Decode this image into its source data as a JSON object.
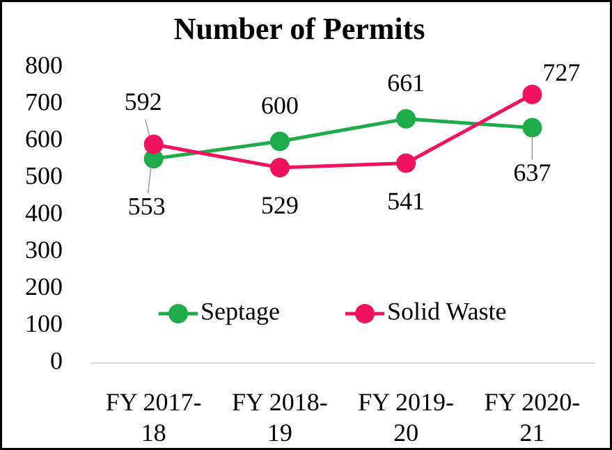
{
  "chart_data": {
    "type": "line",
    "title": "Number of Permits",
    "categories": [
      "FY 2017-18",
      "FY 2018-19",
      "FY 2019-20",
      "FY 2020-21"
    ],
    "series": [
      {
        "name": "Septage",
        "color": "#1fab4a",
        "values": [
          553,
          600,
          661,
          637
        ]
      },
      {
        "name": "Solid Waste",
        "color": "#f0125f",
        "values": [
          592,
          529,
          541,
          727
        ]
      }
    ],
    "ylim": [
      0,
      800
    ],
    "yticks": [
      0,
      100,
      200,
      300,
      400,
      500,
      600,
      700,
      800
    ],
    "legend": "center"
  }
}
